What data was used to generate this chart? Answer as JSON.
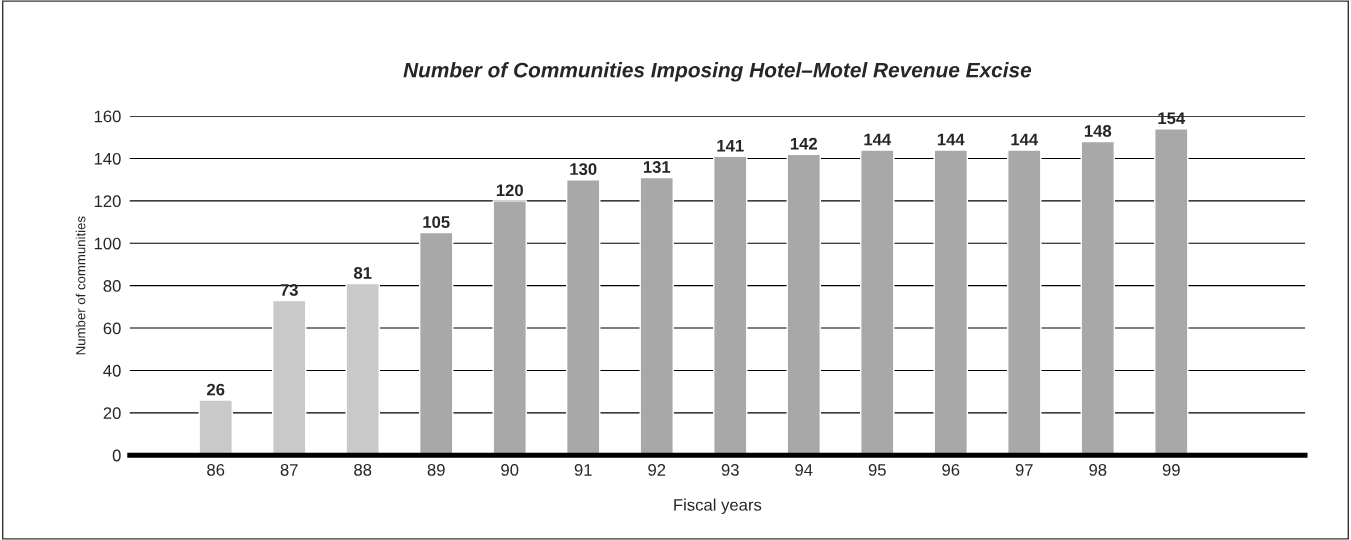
{
  "chart_data": {
    "type": "bar",
    "title": "Number of Communities Imposing Hotel–Motel Revenue Excise",
    "xlabel": "Fiscal years",
    "ylabel": "Number of communities",
    "categories": [
      "86",
      "87",
      "88",
      "89",
      "90",
      "91",
      "92",
      "93",
      "94",
      "95",
      "96",
      "97",
      "98",
      "99"
    ],
    "values": [
      26,
      73,
      81,
      105,
      120,
      130,
      131,
      141,
      142,
      144,
      144,
      144,
      148,
      154
    ],
    "colors": [
      "#c8c9c8",
      "#c8c9c8",
      "#c8c9c8",
      "#a8a8a8",
      "#a8a8a8",
      "#a8a8a8",
      "#a8a8a8",
      "#a8a8a8",
      "#a8a8a8",
      "#a8a8a8",
      "#a8a8a8",
      "#a8a8a8",
      "#a8a8a8",
      "#a8a8a8"
    ],
    "ylim": [
      0,
      160
    ],
    "yticks": [
      0,
      20,
      40,
      60,
      80,
      100,
      120,
      140,
      160
    ],
    "grid": "y",
    "data_labels": true
  }
}
